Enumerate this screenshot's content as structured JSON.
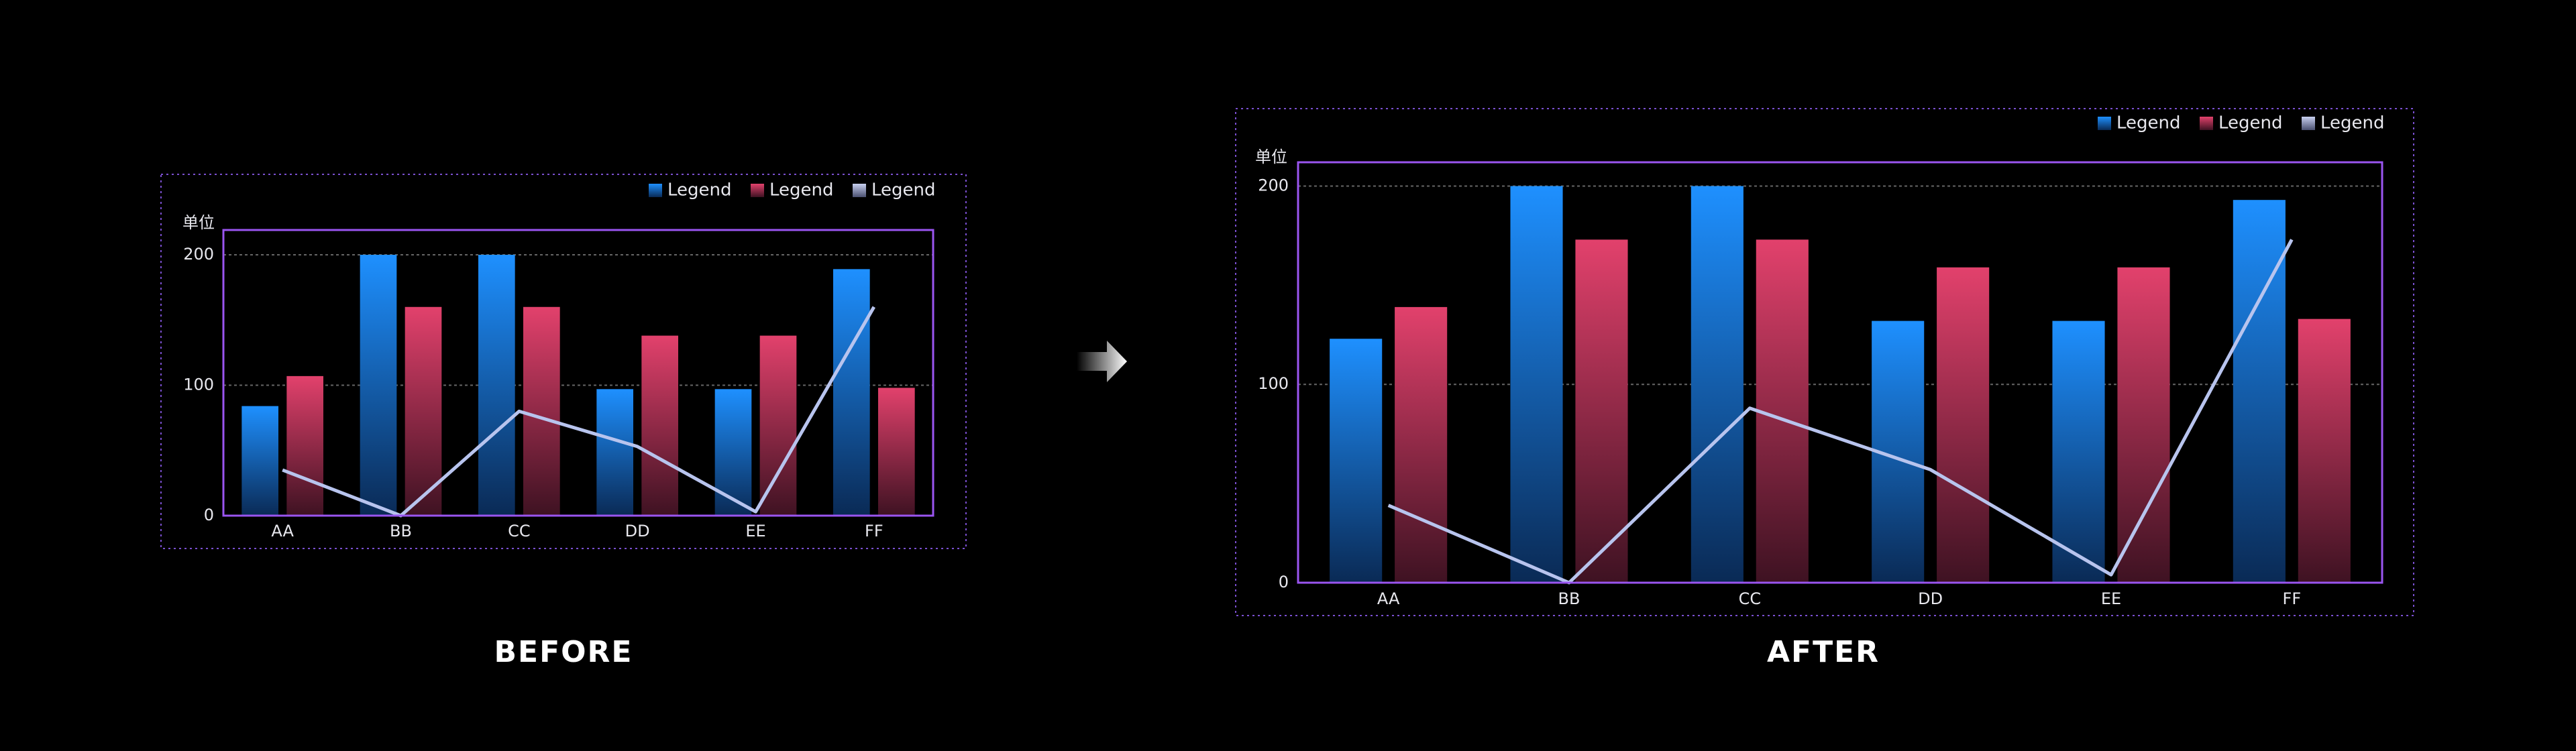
{
  "chart_data": [
    {
      "type": "bar",
      "title": "BEFORE",
      "y_label": "单位",
      "categories": [
        "AA",
        "BB",
        "CC",
        "DD",
        "EE",
        "FF"
      ],
      "series": [
        {
          "name": "Legend",
          "color": "#1e90ff",
          "values": [
            84,
            200,
            200,
            97,
            97,
            189
          ]
        },
        {
          "name": "Legend",
          "color": "#e2416c",
          "values": [
            107,
            160,
            160,
            138,
            138,
            98
          ]
        },
        {
          "name": "Legend",
          "color": "#b8c4ee",
          "type": "line",
          "values": [
            35,
            0,
            80,
            53,
            3,
            160
          ]
        }
      ],
      "ylim": [
        0,
        219
      ],
      "yticks": [
        0,
        100,
        200
      ],
      "grid": true,
      "legend": "top-right"
    },
    {
      "type": "bar",
      "title": "AFTER",
      "y_label": "单位",
      "categories": [
        "AA",
        "BB",
        "CC",
        "DD",
        "EE",
        "FF"
      ],
      "series": [
        {
          "name": "Legend",
          "color": "#1e90ff",
          "values": [
            123,
            200,
            200,
            132,
            132,
            193
          ]
        },
        {
          "name": "Legend",
          "color": "#e2416c",
          "values": [
            139,
            173,
            173,
            159,
            159,
            133
          ]
        },
        {
          "name": "Legend",
          "color": "#b8c4ee",
          "type": "line",
          "values": [
            39,
            0,
            88,
            57,
            4,
            173
          ]
        }
      ],
      "ylim": [
        0,
        212
      ],
      "yticks": [
        0,
        100,
        200
      ],
      "grid": true,
      "legend": "top-right"
    }
  ]
}
